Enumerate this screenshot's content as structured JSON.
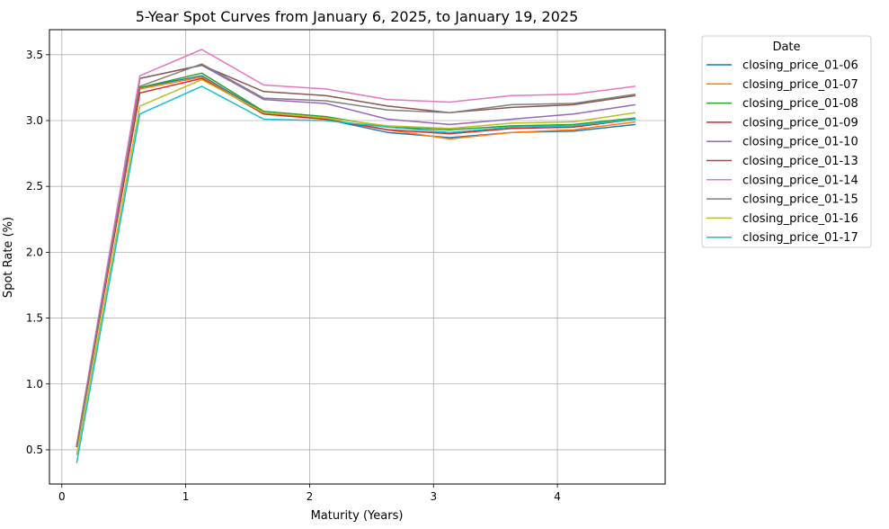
{
  "chart_data": {
    "type": "line",
    "title": "5-Year Spot Curves from January 6, 2025, to January 19, 2025",
    "xlabel": "Maturity (Years)",
    "ylabel": "Spot Rate (%)",
    "xlim": [
      -0.1,
      4.87
    ],
    "ylim": [
      0.24,
      3.69
    ],
    "xticks": [
      0,
      1,
      2,
      3,
      4
    ],
    "yticks": [
      0.5,
      1.0,
      1.5,
      2.0,
      2.5,
      3.0,
      3.5
    ],
    "xtick_labels": [
      "0",
      "1",
      "2",
      "3",
      "4"
    ],
    "ytick_labels": [
      "0.5",
      "1.0",
      "1.5",
      "2.0",
      "2.5",
      "3.0",
      "3.5"
    ],
    "grid": true,
    "legend_title": "Date",
    "legend_position": "outside-top-right",
    "x": [
      0.12,
      0.63,
      1.13,
      1.63,
      2.13,
      2.63,
      3.13,
      3.63,
      4.13,
      4.63
    ],
    "series": [
      {
        "name": "closing_price_01-06",
        "color": "#1f77b4",
        "values": [
          0.52,
          3.25,
          3.34,
          3.06,
          3.01,
          2.91,
          2.87,
          2.91,
          2.92,
          2.97
        ]
      },
      {
        "name": "closing_price_01-07",
        "color": "#ff7f0e",
        "values": [
          0.52,
          3.24,
          3.33,
          3.05,
          3.01,
          2.93,
          2.86,
          2.91,
          2.93,
          2.99
        ]
      },
      {
        "name": "closing_price_01-08",
        "color": "#2ca02c",
        "values": [
          0.52,
          3.25,
          3.36,
          3.07,
          3.03,
          2.95,
          2.93,
          2.96,
          2.97,
          3.02
        ]
      },
      {
        "name": "closing_price_01-09",
        "color": "#d62728",
        "values": [
          0.52,
          3.21,
          3.32,
          3.05,
          3.01,
          2.93,
          2.9,
          2.94,
          2.95,
          3.01
        ]
      },
      {
        "name": "closing_price_01-10",
        "color": "#9467bd",
        "values": [
          0.53,
          3.32,
          3.42,
          3.16,
          3.13,
          3.01,
          2.97,
          3.01,
          3.05,
          3.12
        ]
      },
      {
        "name": "closing_price_01-13",
        "color": "#8c564b",
        "values": [
          0.53,
          3.32,
          3.42,
          3.22,
          3.19,
          3.11,
          3.06,
          3.1,
          3.12,
          3.19
        ]
      },
      {
        "name": "closing_price_01-14",
        "color": "#e377c2",
        "values": [
          0.54,
          3.34,
          3.54,
          3.27,
          3.24,
          3.16,
          3.14,
          3.19,
          3.2,
          3.26
        ]
      },
      {
        "name": "closing_price_01-15",
        "color": "#7f7f7f",
        "values": [
          0.53,
          3.26,
          3.43,
          3.17,
          3.15,
          3.08,
          3.06,
          3.12,
          3.13,
          3.2
        ]
      },
      {
        "name": "closing_price_01-16",
        "color": "#bcbd22",
        "values": [
          0.46,
          3.11,
          3.31,
          3.06,
          3.02,
          2.96,
          2.94,
          2.98,
          2.99,
          3.06
        ]
      },
      {
        "name": "closing_price_01-17",
        "color": "#17becf",
        "values": [
          0.4,
          3.05,
          3.26,
          3.01,
          3.0,
          2.95,
          2.91,
          2.95,
          2.96,
          3.01
        ]
      }
    ]
  }
}
